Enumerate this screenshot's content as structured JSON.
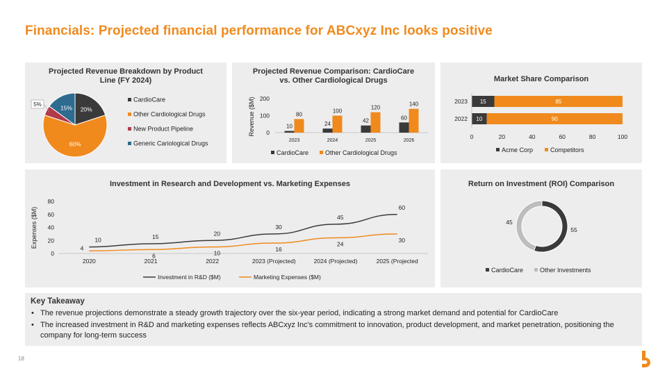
{
  "title": "Financials: Projected financial performance for ABCxyz Inc looks positive",
  "page_number": "18",
  "colors": {
    "orange": "#f08a1c",
    "dark": "#3a3a3a",
    "red": "#b03a48",
    "blue": "#2e6b8f",
    "gray": "#bdbdbd",
    "accent": "#f08a1c"
  },
  "key_takeaway": {
    "heading": "Key Takeaway",
    "bullets": [
      "The revenue projections demonstrate a steady growth trajectory over the six-year period, indicating a strong market demand and potential for CardioCare",
      "The increased investment in R&D and marketing expenses reflects ABCxyz Inc's commitment to innovation, product development, and market penetration, positioning the company for long-term success"
    ]
  },
  "chart_data": [
    {
      "id": "pie",
      "type": "pie",
      "title": "Projected Revenue Breakdown by Product Line (FY 2024)",
      "title_lines": [
        "Projected Revenue Breakdown by Product",
        "Line (FY 2024)"
      ],
      "labels": [
        "CardioCare",
        "Other Cardiological Drugs",
        "New Product Pipeline",
        "Generic Cariological Drugs"
      ],
      "values": [
        20,
        60,
        5,
        15
      ],
      "value_labels": [
        "20%",
        "60%",
        "5%",
        "15%"
      ],
      "colors": [
        "#3a3a3a",
        "#f08a1c",
        "#b03a48",
        "#2e6b8f"
      ],
      "legend": "right"
    },
    {
      "id": "revbar",
      "type": "bar",
      "title": "Projected Revenue Comparison: CardioCare vs. Other Cardiological Drugs",
      "title_lines": [
        "Projected Revenue Comparison: CardioCare",
        "vs. Other Cardiological Drugs"
      ],
      "categories": [
        "2023",
        "2024",
        "2025",
        "2026"
      ],
      "series": [
        {
          "name": "CardioCare",
          "values": [
            10,
            24,
            42,
            60
          ],
          "color": "#3a3a3a"
        },
        {
          "name": "Other Cardiological Drugs",
          "values": [
            80,
            100,
            120,
            140
          ],
          "color": "#f08a1c"
        }
      ],
      "ylabel": "Revenue ($M)",
      "ylim": [
        0,
        200
      ],
      "yticks": [
        0,
        100,
        200
      ],
      "legend": "bottom"
    },
    {
      "id": "share",
      "type": "bar",
      "orientation": "horizontal",
      "stacked": true,
      "title": "Market Share Comparison",
      "categories": [
        "2023",
        "2022"
      ],
      "series": [
        {
          "name": "Acme Corp",
          "values": [
            15,
            10
          ],
          "color": "#3a3a3a"
        },
        {
          "name": "Competitors",
          "values": [
            85,
            90
          ],
          "color": "#f08a1c"
        }
      ],
      "xlim": [
        0,
        100
      ],
      "xticks": [
        0,
        20,
        40,
        60,
        80,
        100
      ],
      "legend": "bottom"
    },
    {
      "id": "rnd",
      "type": "line",
      "title": "Investment in Research and Development vs. Marketing Expenses",
      "categories": [
        "2020",
        "2021",
        "2022",
        "2023 (Projected)",
        "2024 (Projected)",
        "2025 (Projected"
      ],
      "series": [
        {
          "name": "Investment in R&D ($M)",
          "values": [
            10,
            15,
            20,
            30,
            45,
            60
          ],
          "color": "#3a3a3a"
        },
        {
          "name": "Marketing Expenses ($M)",
          "values": [
            4,
            6,
            10,
            16,
            24,
            30
          ],
          "color": "#f08a1c"
        }
      ],
      "ylabel": "Expenses ($M)",
      "ylim": [
        0,
        80
      ],
      "yticks": [
        0,
        20,
        40,
        60,
        80
      ],
      "grid": false,
      "legend": "bottom"
    },
    {
      "id": "roi",
      "type": "pie",
      "variant": "donut",
      "title": "Return on Investment (ROI) Comparison",
      "labels": [
        "CardioCare",
        "Other Investments"
      ],
      "values": [
        55,
        45
      ],
      "value_labels": [
        "55",
        "45"
      ],
      "colors": [
        "#3a3a3a",
        "#bdbdbd"
      ],
      "legend": "bottom"
    }
  ]
}
